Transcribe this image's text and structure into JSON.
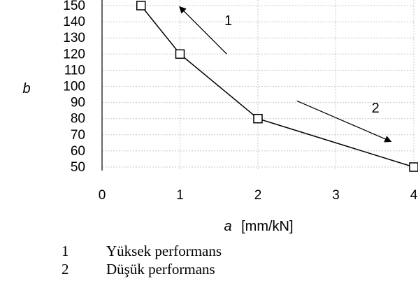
{
  "chart_data": {
    "type": "line",
    "title": "",
    "xlabel": "a",
    "xunit": "[mm/kN]",
    "ylabel": "b",
    "xlim": [
      0,
      4
    ],
    "ylim": [
      50,
      150
    ],
    "xticks": [
      0,
      1,
      2,
      3,
      4
    ],
    "yticks": [
      50,
      60,
      70,
      80,
      90,
      100,
      110,
      120,
      130,
      140,
      150
    ],
    "grid": true,
    "series": [
      {
        "x": [
          0.5,
          1,
          2,
          4
        ],
        "y": [
          150,
          120,
          80,
          50
        ],
        "marker": "square"
      }
    ],
    "annotations": [
      {
        "label": "1",
        "from": [
          1.6,
          120
        ],
        "to": [
          1.0,
          149
        ]
      },
      {
        "label": "2",
        "from": [
          2.5,
          91
        ],
        "to": [
          3.7,
          66
        ]
      }
    ]
  },
  "legend": [
    {
      "num": "1",
      "text": "Yüksek performans"
    },
    {
      "num": "2",
      "text": "Düşük performans"
    }
  ]
}
